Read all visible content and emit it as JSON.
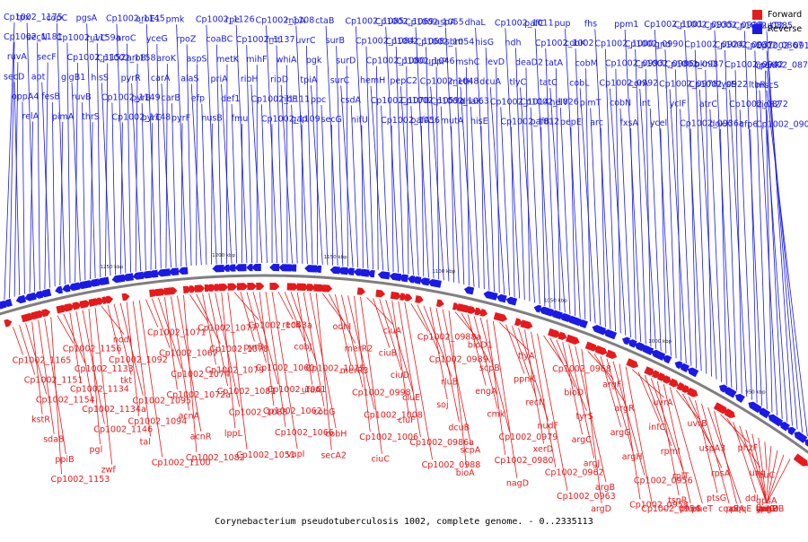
{
  "caption": "Corynebacterium pseudotuberculosis 1002, complete genome. - 0..2335113",
  "legend": [
    {
      "label": "Forward",
      "color": "#e8191a"
    },
    {
      "label": "Reverse",
      "color": "#1a1ae8"
    }
  ],
  "colors": {
    "forward": "#e8191a",
    "reverse": "#1a1ae8",
    "backbone": "#7f7f7f"
  },
  "ticks": [
    "950 kbp",
    "1000 kbp",
    "1050 kbp",
    "1100 kbp",
    "1150 kbp",
    "1200 kbp",
    "1250 kbp"
  ],
  "reverse_labels": [
    "Cp1002_1175",
    "Cp1002_1181",
    "ruvA",
    "secD",
    "oppA4",
    "relA",
    "tpx",
    "secN",
    "secF",
    "apt",
    "fesB",
    "pimA",
    "copC",
    "Cp1002_1159a",
    "Cp1002_1152",
    "glgB1",
    "ruvB",
    "thrS",
    "pgsA",
    "ruvC",
    "Cp1002_1158",
    "hisS",
    "Cp1002_1149",
    "Cp1002_1148",
    "Cp1002_1145",
    "aroC",
    "aroB",
    "pyrR",
    "pyrB",
    "pyrC",
    "aroE1",
    "yceG",
    "aroK",
    "carA",
    "carB",
    "pyrF",
    "pmk",
    "rpoZ",
    "aspS",
    "alaS",
    "efp",
    "nusB",
    "Cp1002_1126",
    "coaBC",
    "metK",
    "priA",
    "def1",
    "fmu",
    "rpe",
    "Cp1002_1137",
    "mihF",
    "ribH",
    "Cp1002_1111",
    "Cp1002_1109",
    "Cp1002_1108",
    "fmt",
    "whiA",
    "ribD",
    "ribE",
    "gap",
    "rnpA",
    "uvrC",
    "pgk",
    "tpiA",
    "ppc",
    "secG",
    "ctaB",
    "surB",
    "surD",
    "surC",
    "csdA",
    "nifU",
    "Cp1002_1085",
    "Cp1002_1084",
    "Cp1002_1080",
    "hemH",
    "Cp1002_1070",
    "Cp1002_1056",
    "Cp1002_1069",
    "Cp1002_1068",
    "Cp1002_1046",
    "pepC2",
    "Cp1002_1059a",
    "pafA1",
    "Cp1002_1055",
    "Cp1002_1054",
    "uppP",
    "Cp1002_1048",
    "Cp1002_1063",
    "mutA",
    "aspA",
    "sbm",
    "mshC",
    "metH",
    "dhaK",
    "hisE",
    "dhaL",
    "hisG",
    "levD",
    "dcuA",
    "Cp1002_1014",
    "Cp1002_1012",
    "Cp1002_1011",
    "ndh",
    "deaD2",
    "tlyC",
    "Cp1002_1026",
    "pafB",
    "pafC",
    "Cp1002_1002",
    "tatA",
    "tatC",
    "helY",
    "pepE",
    "pup",
    "cobK",
    "cobM",
    "cobL",
    "pimT",
    "arc",
    "fhs",
    "Cp1002_1000",
    "Cp1002_0993",
    "Cp1002_0992",
    "cobN",
    "fxsA",
    "ppm1",
    "Cp1002_0990",
    "Cp1002_0986b",
    "corA",
    "int",
    "ycel",
    "Cp1002_1001",
    "gnd",
    "Cp1002_0987",
    "Cp1002_0978",
    "yclF",
    "Cp1002_0936a",
    "Cp1002_0935",
    "Cp1002_0924",
    "pknD",
    "Cp1002_0922",
    "atrC",
    "doxX",
    "Cp1002_0927",
    "Cp1002_0937",
    "Cp1002_0942",
    "lysE",
    "Cp1002_0872",
    "cfp6",
    "Cp1002_0885",
    "Cp1002_0867",
    "Cp1002_0873",
    "ltbR",
    "bioB2",
    "Cp1002_0908a",
    "mutT2",
    "Cp1002_0911",
    "menF",
    "mscS"
  ],
  "forward_labels": [
    "Cp1002_1165",
    "Cp1002_1151",
    "Cp1002_1154",
    "kstR",
    "sdaB",
    "ppiB",
    "Cp1002_1153",
    "Cp1002_1156",
    "Cp1002_1133",
    "Cp1002_1134",
    "Cp1002_1134a",
    "Cp1002_1146",
    "pgl",
    "zwf",
    "nodI",
    "Cp1002_1092",
    "tkt",
    "Cp1002_1095",
    "Cp1002_1094",
    "tal",
    "Cp1002_1100",
    "Cp1002_1071",
    "Cp1002_1067",
    "Cp1002_1074",
    "Cp1002_1072a",
    "acnA",
    "acnR",
    "Cp1002_1082",
    "Cp1002_1077",
    "Cp1002_1078",
    "Cp1002_1079",
    "Cp1002_1081",
    "Cp1002_1083",
    "lppL",
    "Cp1002_1051",
    "Cp1002_1043a",
    "pyrD",
    "Cp1002_1060",
    "Cp1002_1061",
    "Cp1002_1062",
    "Cp1002_1066",
    "vapI",
    "recB",
    "cobJ",
    "Cp1002_1015",
    "ufaA",
    "cobG",
    "cobH",
    "secA2",
    "odhI",
    "merR2",
    "merR3",
    "Cp1002_0998",
    "Cp1002_1008",
    "Cp1002_1006",
    "ciuC",
    "ciuA",
    "ciuB",
    "ciuD",
    "ciuE",
    "ciuF",
    "Cp1002_0986a",
    "Cp1002_0988",
    "Cp1002_0988a",
    "Cp1002_0989",
    "rluB",
    "soj",
    "dcuB",
    "scpA",
    "bioA",
    "bioD1",
    "scpB",
    "engA",
    "cmk",
    "Cp1002_0979",
    "Cp1002_0980",
    "nagD",
    "tlyA",
    "ppnK",
    "recN",
    "nudF",
    "xerD",
    "Cp1002_0962",
    "Cp1002_0963",
    "Cp1002_0968",
    "bioD",
    "tyrS",
    "argC",
    "argJ",
    "argB",
    "argD",
    "argF",
    "argR",
    "argG",
    "argH",
    "Cp1002_0956",
    "Cp1002_0958",
    "Cp1002_0954",
    "uvrA",
    "infC",
    "rpmI",
    "rplT",
    "tsnR",
    "pheS",
    "pheT",
    "uvrB",
    "uspA3",
    "rpsA",
    "ptsG",
    "coaE",
    "pqqE",
    "polA",
    "phzF",
    "ung",
    "ddl",
    "recG",
    "thiL",
    "lpqC",
    "spoT",
    "leuC",
    "gpsA",
    "daK2",
    "yngHB",
    "rsmD"
  ]
}
